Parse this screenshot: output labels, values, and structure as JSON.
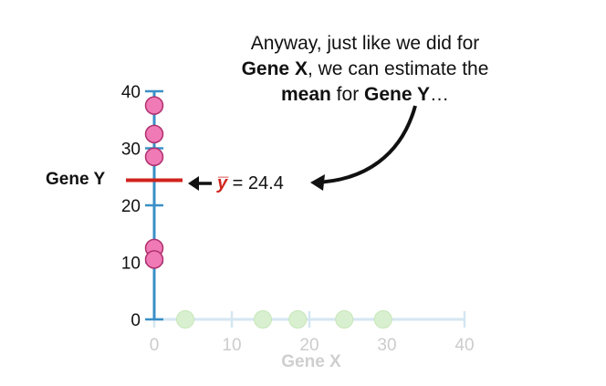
{
  "callout": {
    "line1": "Anyway, just like we did for",
    "line2_bold": "Gene X",
    "line2_rest": ", we can estimate the",
    "line3_bold1": "mean",
    "line3_mid": " for ",
    "line3_bold2": "Gene Y",
    "line3_end": "…"
  },
  "mean_label": {
    "symbol": "y̅",
    "equals": " = 24.4",
    "value": 24.4
  },
  "colors": {
    "y_axis": "#3a8fc7",
    "x_axis": "#d5e6f2",
    "x_tick_text": "#cccccc",
    "y_points_fill": "#f07ab6",
    "y_points_stroke": "#b0306e",
    "x_points_fill": "#d9f0d0",
    "mean_line": "#d0231d",
    "arrow": "#111111"
  },
  "chart_data": {
    "type": "scatter",
    "xlabel": "Gene X",
    "ylabel": "Gene Y",
    "xlim": [
      0,
      40
    ],
    "ylim": [
      0,
      40
    ],
    "x_ticks": [
      "0",
      "10",
      "20",
      "30",
      "40"
    ],
    "y_ticks": [
      "0",
      "10",
      "20",
      "30",
      "40"
    ],
    "x_tick_values": [
      0,
      10,
      20,
      30,
      40
    ],
    "y_tick_values": [
      0,
      10,
      20,
      30,
      40
    ],
    "gene_y_values": [
      37.5,
      32.5,
      28.5,
      12.5,
      10.5
    ],
    "gene_x_values": [
      4,
      14,
      18.5,
      24.5,
      29.5
    ],
    "gene_y_mean": 24.4
  }
}
